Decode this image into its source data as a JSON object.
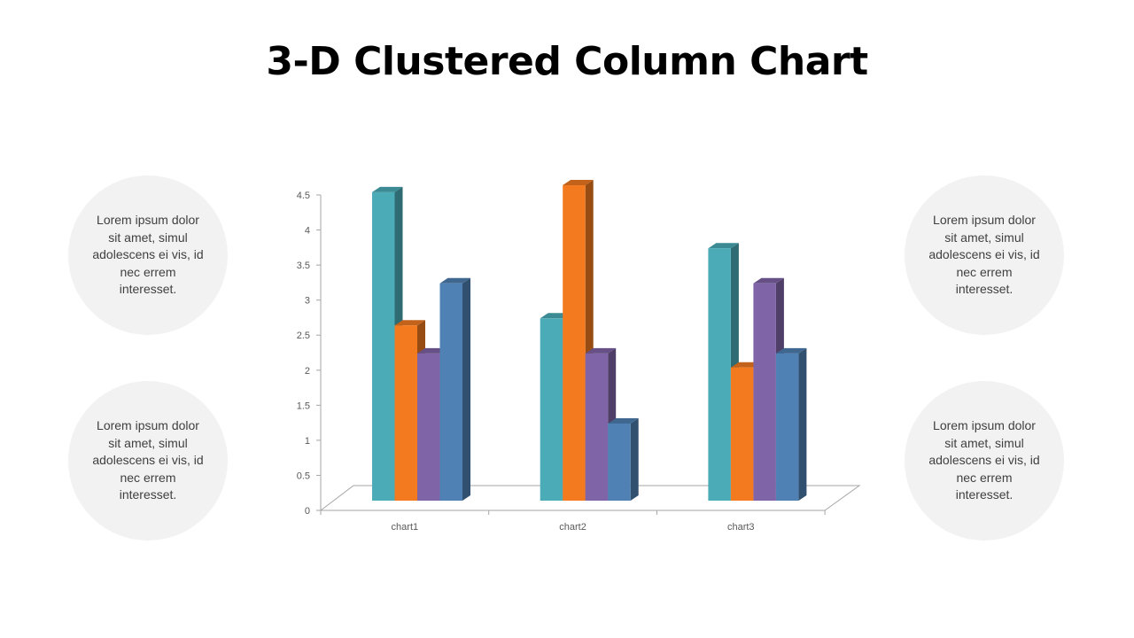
{
  "slide": {
    "title": "3-D Clustered Column Chart"
  },
  "notes": [
    {
      "text": "Lorem ipsum dolor sit amet, simul adolescens ei vis, id nec errem interesset."
    },
    {
      "text": "Lorem ipsum dolor sit amet, simul adolescens ei vis, id nec errem interesset."
    },
    {
      "text": "Lorem ipsum dolor sit amet, simul adolescens ei vis, id nec errem interesset."
    },
    {
      "text": "Lorem ipsum dolor sit amet, simul adolescens ei vis, id nec errem interesset."
    }
  ],
  "chart_data": {
    "type": "bar",
    "variant": "3d-clustered-column",
    "categories": [
      "chart1",
      "chart2",
      "chart3"
    ],
    "series": [
      {
        "values": [
          4.4,
          2.6,
          3.6
        ],
        "color": "#4bacb8"
      },
      {
        "values": [
          2.5,
          4.5,
          1.9
        ],
        "color": "#f47a20"
      },
      {
        "values": [
          2.1,
          2.1,
          3.1
        ],
        "color": "#8064a8"
      },
      {
        "values": [
          3.1,
          1.1,
          2.1
        ],
        "color": "#4f81b4"
      }
    ],
    "ylim": [
      0,
      4.5
    ],
    "yticks": [
      "0",
      "0.5",
      "1",
      "1.5",
      "2",
      "2.5",
      "3",
      "3.5",
      "4",
      "4.5"
    ],
    "grid": false,
    "legend": "none"
  }
}
